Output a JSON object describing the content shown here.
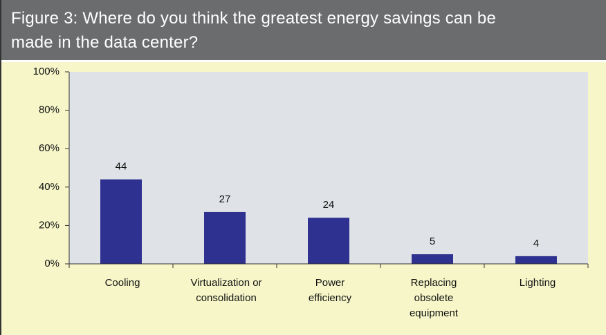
{
  "chart_data": {
    "type": "bar",
    "title": "Figure 3: Where do you think the greatest energy savings can be\nmade in the data center?",
    "categories": [
      "Cooling",
      "Virtualization or\nconsolidation",
      "Power\nefficiency",
      "Replacing\nobsolete\nequipment",
      "Lighting"
    ],
    "values": [
      44,
      27,
      24,
      5,
      4
    ],
    "color": "#2e318f",
    "ylim": [
      0,
      100
    ],
    "yticks": [
      {
        "value": 0,
        "label": "0%"
      },
      {
        "value": 20,
        "label": "20%"
      },
      {
        "value": 40,
        "label": "40%"
      },
      {
        "value": 60,
        "label": "60%"
      },
      {
        "value": 80,
        "label": "80%"
      },
      {
        "value": 100,
        "label": "100%"
      }
    ]
  }
}
